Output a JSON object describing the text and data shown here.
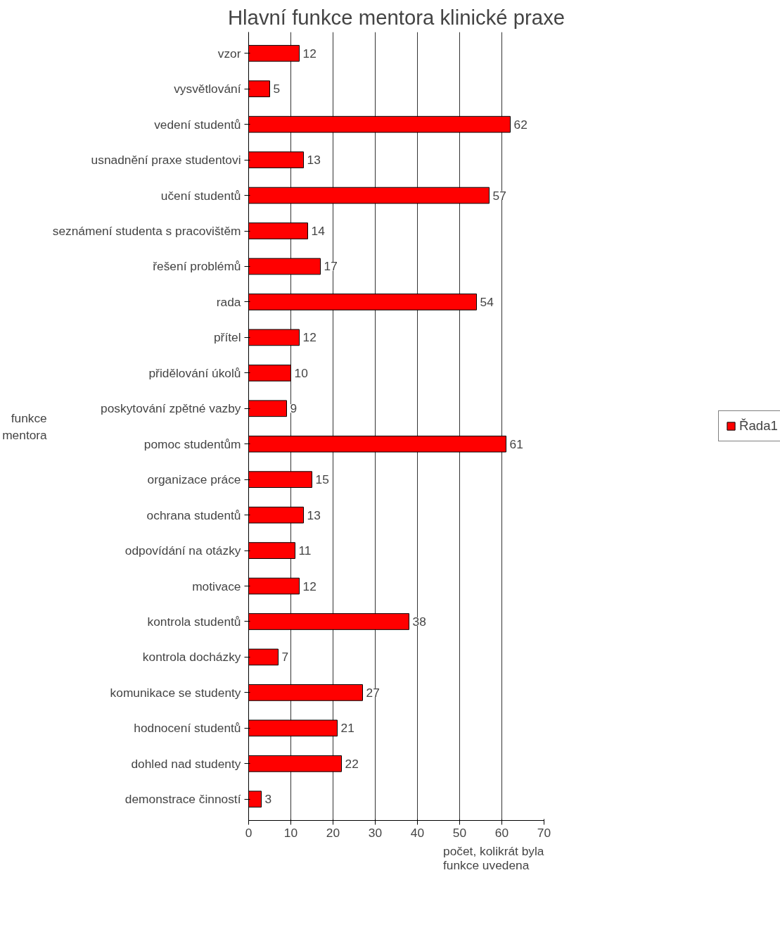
{
  "chart_data": {
    "type": "bar",
    "orientation": "horizontal",
    "title": "Hlavní funkce mentora klinické praxe",
    "ylabel": "funkce mentora",
    "xlabel": "počet, kolikrát byla funkce uvedena",
    "categories": [
      "vzor",
      "vysvětlování",
      "vedení studentů",
      "usnadnění praxe studentovi",
      "učení studentů",
      "seznámení studenta s pracovištěm",
      "řešení problémů",
      "rada",
      "přítel",
      "přidělování úkolů",
      "poskytování zpětné vazby",
      "pomoc studentům",
      "organizace práce",
      "ochrana studentů",
      "odpovídání na otázky",
      "motivace",
      "kontrola studentů",
      "kontrola docházky",
      "komunikace se studenty",
      "hodnocení studentů",
      "dohled nad studenty",
      "demonstrace činností"
    ],
    "series": [
      {
        "name": "Řada1",
        "color": "#ff0000",
        "values": [
          12,
          5,
          62,
          13,
          57,
          14,
          17,
          54,
          12,
          10,
          9,
          61,
          15,
          13,
          11,
          12,
          38,
          7,
          27,
          21,
          22,
          3
        ]
      }
    ],
    "xlim": [
      0,
      70
    ],
    "xticks": [
      0,
      10,
      20,
      30,
      40,
      50,
      60,
      70
    ],
    "grid": "x",
    "legend": "right",
    "data_labels": true
  }
}
